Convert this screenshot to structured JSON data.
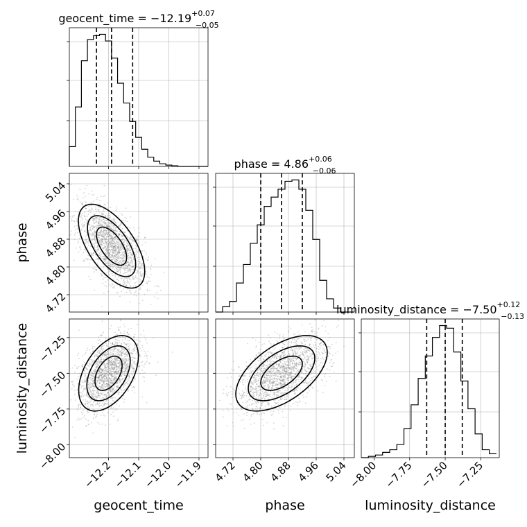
{
  "chart_data": {
    "type": "corner",
    "parameters": [
      "geocent_time",
      "phase",
      "luminosity_distance"
    ],
    "axis_labels": {
      "geocent_time": "geocent_time",
      "phase": "phase",
      "luminosity_distance": "luminosity_distance"
    },
    "ranges": {
      "geocent_time": [
        -12.33,
        -11.87
      ],
      "phase": [
        4.67,
        5.07
      ],
      "luminosity_distance": [
        -8.09,
        -7.12
      ]
    },
    "ticks": {
      "geocent_time": {
        "values": [
          -12.2,
          -12.1,
          -12.0,
          -11.9
        ],
        "labels": [
          "−12.2",
          "−12.1",
          "−12.0",
          "−11.9"
        ]
      },
      "phase": {
        "values": [
          4.72,
          4.8,
          4.88,
          4.96,
          5.04
        ],
        "labels": [
          "4.72",
          "4.80",
          "4.88",
          "4.96",
          "5.04"
        ]
      },
      "luminosity_distance": {
        "values": [
          -8.0,
          -7.75,
          -7.5,
          -7.25
        ],
        "labels": [
          "−8.00",
          "−7.75",
          "−7.50",
          "−7.25"
        ]
      }
    },
    "summaries": [
      {
        "param": "geocent_time",
        "name": "geocent_time",
        "median": -12.19,
        "median_label": "−12.19",
        "plus": "+0.07",
        "minus": "−0.05",
        "quantiles": [
          -12.24,
          -12.19,
          -12.12
        ]
      },
      {
        "param": "phase",
        "name": "phase",
        "median": 4.86,
        "median_label": "4.86",
        "plus": "+0.06",
        "minus": "−0.06",
        "quantiles": [
          4.8,
          4.86,
          4.92
        ]
      },
      {
        "param": "luminosity_distance",
        "name": "luminosity_distance",
        "median": -7.5,
        "median_label": "−7.50",
        "plus": "+0.12",
        "minus": "−0.13",
        "quantiles": [
          -7.63,
          -7.5,
          -7.38
        ]
      }
    ],
    "histograms": {
      "geocent_time": {
        "bins": [
          -12.33,
          -12.31,
          -12.29,
          -12.27,
          -12.25,
          -12.23,
          -12.21,
          -12.19,
          -12.17,
          -12.15,
          -12.13,
          -12.11,
          -12.09,
          -12.07,
          -12.05,
          -12.03,
          -12.01,
          -11.99,
          -11.97,
          -11.95,
          -11.93,
          -11.91,
          -11.89,
          -11.87
        ],
        "counts": [
          0.15,
          0.45,
          0.8,
          0.96,
          0.99,
          1.0,
          0.95,
          0.82,
          0.63,
          0.48,
          0.34,
          0.22,
          0.13,
          0.07,
          0.04,
          0.02,
          0.01,
          0.005,
          0,
          0,
          0,
          0,
          0
        ]
      },
      "phase": {
        "bins": [
          4.67,
          4.69,
          4.71,
          4.73,
          4.75,
          4.77,
          4.79,
          4.81,
          4.83,
          4.85,
          4.87,
          4.89,
          4.91,
          4.93,
          4.95,
          4.97,
          4.99,
          5.01,
          5.03,
          5.05,
          5.07
        ],
        "counts": [
          0.0,
          0.04,
          0.08,
          0.22,
          0.36,
          0.52,
          0.66,
          0.8,
          0.87,
          0.93,
          0.99,
          1.0,
          0.93,
          0.77,
          0.55,
          0.24,
          0.1,
          0.03,
          0.0,
          0.0
        ]
      },
      "luminosity_distance": {
        "bins": [
          -8.09,
          -8.04,
          -7.99,
          -7.94,
          -7.89,
          -7.84,
          -7.79,
          -7.74,
          -7.69,
          -7.64,
          -7.59,
          -7.54,
          -7.49,
          -7.44,
          -7.39,
          -7.34,
          -7.29,
          -7.24,
          -7.19,
          -7.14
        ],
        "counts": [
          0.0,
          0.01,
          0.02,
          0.04,
          0.06,
          0.1,
          0.22,
          0.4,
          0.6,
          0.77,
          0.91,
          1.0,
          0.98,
          0.8,
          0.58,
          0.37,
          0.18,
          0.06,
          0.03
        ]
      }
    },
    "joint": [
      {
        "x": "geocent_time",
        "y": "phase",
        "mean": [
          -12.19,
          4.86
        ],
        "sd": [
          0.05,
          0.055
        ],
        "corr": -0.6
      },
      {
        "x": "geocent_time",
        "y": "luminosity_distance",
        "mean": [
          -12.2,
          -7.5
        ],
        "sd": [
          0.045,
          0.12
        ],
        "corr": 0.45
      },
      {
        "x": "phase",
        "y": "luminosity_distance",
        "mean": [
          4.86,
          -7.5
        ],
        "sd": [
          0.06,
          0.12
        ],
        "corr": 0.55
      }
    ]
  }
}
